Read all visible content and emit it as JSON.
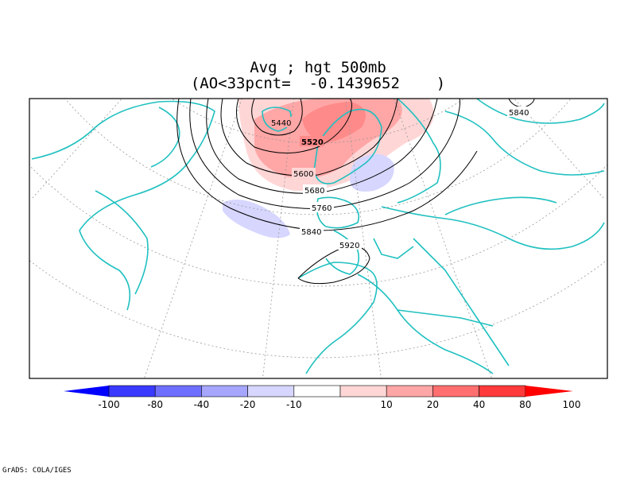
{
  "title": {
    "line1": "Avg ; hgt 500mb",
    "line2": "(AO<33pcnt=  -0.1439652    )"
  },
  "contours": {
    "labels": [
      "5440",
      "5520",
      "5600",
      "5680",
      "5760",
      "5840",
      "5920",
      "5840"
    ]
  },
  "colorbar": {
    "labels": [
      "-100",
      "-80",
      "-40",
      "-20",
      "-10",
      "10",
      "20",
      "40",
      "80",
      "100"
    ],
    "colors": [
      "#0000ff",
      "#3a3aff",
      "#6f6fff",
      "#a6a6ff",
      "#d6d6ff",
      "#ffffff",
      "#ffd6d6",
      "#ffa6a6",
      "#ff6f6f",
      "#ff3a3a",
      "#ff0000"
    ]
  },
  "map": {
    "coastline_color": "#20c0c0",
    "contour_color": "#000000",
    "grid_color": "#999999"
  },
  "credit": "GrADS: COLA/IGES"
}
